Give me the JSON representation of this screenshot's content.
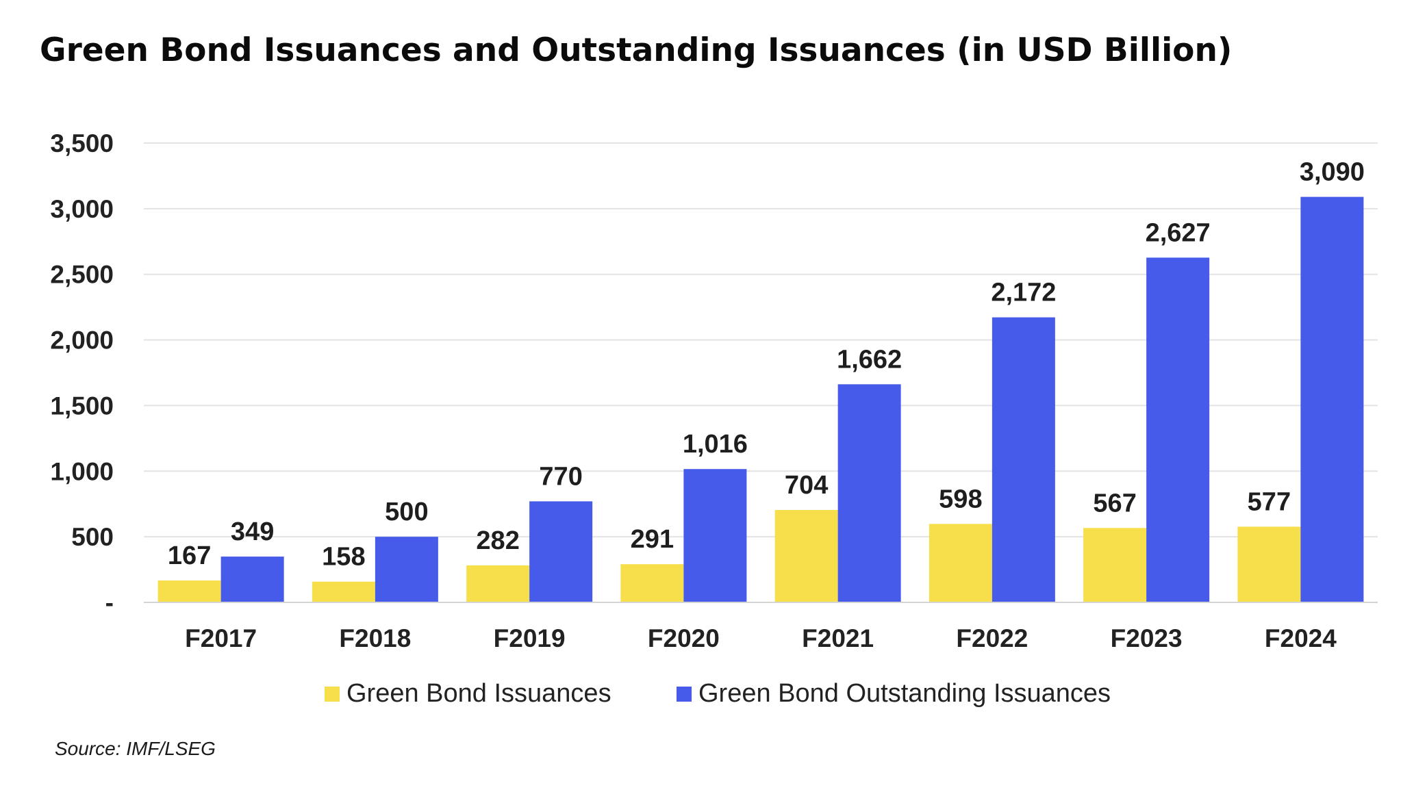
{
  "chart_data": {
    "type": "bar",
    "title": "Green Bond Issuances and Outstanding Issuances (in USD Billion)",
    "categories": [
      "F2017",
      "F2018",
      "F2019",
      "F2020",
      "F2021",
      "F2022",
      "F2023",
      "F2024"
    ],
    "series": [
      {
        "name": "Green Bond Issuances",
        "color": "#f7de4b",
        "values": [
          167,
          158,
          282,
          291,
          704,
          598,
          567,
          577
        ],
        "labels": [
          "167",
          "158",
          "282",
          "291",
          "704",
          "598",
          "567",
          "577"
        ]
      },
      {
        "name": "Green Bond Outstanding Issuances",
        "color": "#465bea",
        "values": [
          349,
          500,
          770,
          1016,
          1662,
          2172,
          2627,
          3090
        ],
        "labels": [
          "349",
          "500",
          "770",
          "1,016",
          "1,662",
          "2,172",
          "2,627",
          "3,090"
        ]
      }
    ],
    "ylim": [
      0,
      3500
    ],
    "yticks": [
      0,
      500,
      1000,
      1500,
      2000,
      2500,
      3000,
      3500
    ],
    "ytick_labels": [
      "-",
      "500",
      "1,000",
      "1,500",
      "2,000",
      "2,500",
      "3,000",
      "3,500"
    ],
    "grid": true,
    "legend_position": "bottom"
  },
  "source_note": "Source: IMF/LSEG"
}
